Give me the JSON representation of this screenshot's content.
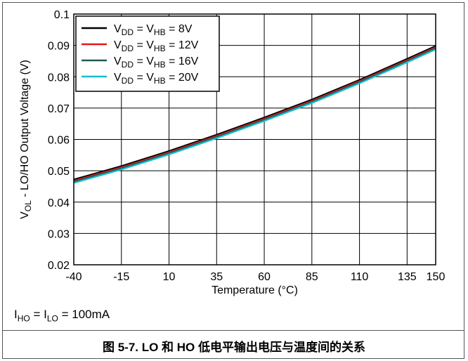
{
  "chart_data": {
    "type": "line",
    "title": "",
    "xlabel": "Temperature (°C)",
    "ylabel_parts": {
      "main": "V",
      "sub": "OL",
      "rest": " - LO/HO Output Voltage (V)"
    },
    "xlim": [
      -40,
      150
    ],
    "ylim": [
      0.02,
      0.1
    ],
    "xticks": [
      -40,
      -15,
      10,
      35,
      60,
      85,
      110,
      135,
      150
    ],
    "xtick_labels": [
      "-40",
      "-15",
      "10",
      "35",
      "60",
      "85",
      "110",
      "135",
      "150"
    ],
    "yticks": [
      0.02,
      0.03,
      0.04,
      0.05,
      0.06,
      0.07,
      0.08,
      0.09,
      0.1
    ],
    "ytick_labels": [
      "0.02",
      "0.03",
      "0.04",
      "0.05",
      "0.06",
      "0.07",
      "0.08",
      "0.09",
      "0.1"
    ],
    "grid": true,
    "legend_position": "top-left",
    "x": [
      -40,
      -15,
      10,
      35,
      60,
      85,
      110,
      135,
      150
    ],
    "series": [
      {
        "name": "VDD = VHB = 8V",
        "legend": {
          "v1": "V",
          "s1": "DD",
          "eq": " = ",
          "v2": "V",
          "s2": "HB",
          "val": " = 8V"
        },
        "color": "#000000",
        "values": [
          0.0472,
          0.0515,
          0.0563,
          0.0615,
          0.067,
          0.0727,
          0.079,
          0.0857,
          0.0898
        ]
      },
      {
        "name": "VDD = VHB = 12V",
        "legend": {
          "v1": "V",
          "s1": "DD",
          "eq": " = ",
          "v2": "V",
          "s2": "HB",
          "val": " = 12V"
        },
        "color": "#e31a1c",
        "values": [
          0.0468,
          0.0511,
          0.0559,
          0.0611,
          0.0666,
          0.0723,
          0.0786,
          0.0853,
          0.0894
        ]
      },
      {
        "name": "VDD = VHB = 16V",
        "legend": {
          "v1": "V",
          "s1": "DD",
          "eq": " = ",
          "v2": "V",
          "s2": "HB",
          "val": " = 16V"
        },
        "color": "#1f5a5a",
        "values": [
          0.0465,
          0.0508,
          0.0556,
          0.0608,
          0.0663,
          0.072,
          0.0783,
          0.085,
          0.0891
        ]
      },
      {
        "name": "VDD = VHB = 20V",
        "legend": {
          "v1": "V",
          "s1": "DD",
          "eq": " = ",
          "v2": "V",
          "s2": "HB",
          "val": " = 20V"
        },
        "color": "#17becf",
        "values": [
          0.0461,
          0.0504,
          0.0552,
          0.0604,
          0.0659,
          0.0716,
          0.0779,
          0.0846,
          0.0887
        ]
      }
    ]
  },
  "condition": {
    "i1": "I",
    "s1": "HO",
    "eq": " = ",
    "i2": "I",
    "s2": "LO",
    "val": " = 100mA"
  },
  "caption": "图 5-7. LO 和 HO 低电平输出电压与温度间的关系"
}
